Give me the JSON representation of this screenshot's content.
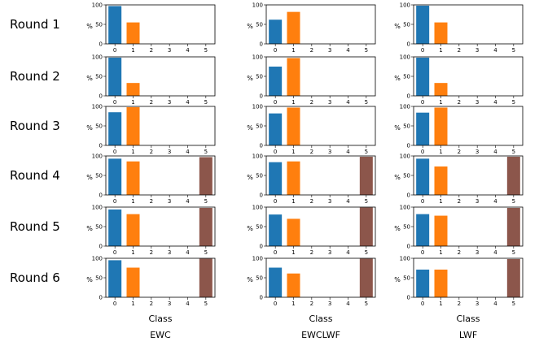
{
  "chart_data": {
    "type": "bar",
    "x_axis_label": "Class",
    "y_axis_unit": "%",
    "categories": [
      "0",
      "1",
      "2",
      "3",
      "4",
      "5"
    ],
    "ylim": [
      0,
      100
    ],
    "y_ticks": [
      "0",
      "50",
      "100"
    ],
    "colors": [
      "#1f77b4",
      "#ff7f0e",
      "#2ca02c",
      "#d62728",
      "#9467bd",
      "#8c564b"
    ],
    "methods": [
      "EWC",
      "EWCLWF",
      "LWF"
    ],
    "rounds": [
      "Round 1",
      "Round 2",
      "Round 3",
      "Round 4",
      "Round 5",
      "Round 6"
    ],
    "values": {
      "EWC": [
        [
          97,
          55,
          0,
          0,
          0,
          0
        ],
        [
          98,
          33,
          0,
          0,
          0,
          0
        ],
        [
          85,
          98,
          0,
          0,
          0,
          0
        ],
        [
          93,
          86,
          0,
          0,
          0,
          97
        ],
        [
          94,
          82,
          0,
          0,
          0,
          98
        ],
        [
          95,
          76,
          0,
          0,
          0,
          99
        ]
      ],
      "EWCLWF": [
        [
          62,
          82,
          0,
          0,
          0,
          0
        ],
        [
          75,
          97,
          0,
          0,
          0,
          0
        ],
        [
          82,
          97,
          0,
          0,
          0,
          0
        ],
        [
          84,
          86,
          0,
          0,
          0,
          98
        ],
        [
          81,
          70,
          0,
          0,
          0,
          99
        ],
        [
          76,
          61,
          0,
          0,
          0,
          99
        ]
      ],
      "LWF": [
        [
          98,
          55,
          0,
          0,
          0,
          0
        ],
        [
          98,
          33,
          0,
          0,
          0,
          0
        ],
        [
          84,
          97,
          0,
          0,
          0,
          0
        ],
        [
          93,
          73,
          0,
          0,
          0,
          98
        ],
        [
          82,
          78,
          0,
          0,
          0,
          98
        ],
        [
          71,
          71,
          0,
          0,
          0,
          98
        ]
      ]
    }
  }
}
